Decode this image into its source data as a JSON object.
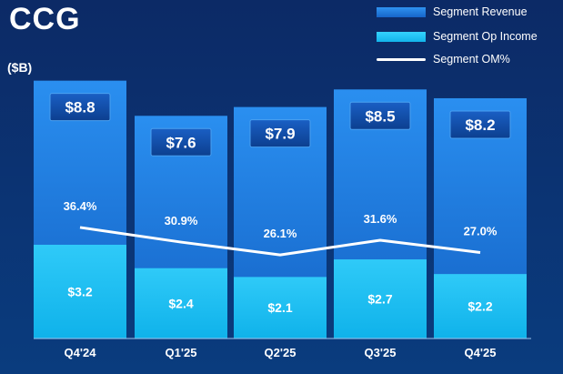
{
  "page": {
    "title": "CCG",
    "unit": "($B)"
  },
  "legend": [
    {
      "label": "Segment Revenue",
      "kind": "bar",
      "color": "#1a7ee0"
    },
    {
      "label": "Segment Op Income",
      "kind": "bar",
      "color": "#19c3f5"
    },
    {
      "label": "Segment OM%",
      "kind": "line",
      "color": "#ffffff"
    }
  ],
  "chart_data": {
    "type": "bar",
    "title": "CCG",
    "ylabel": "($B)",
    "categories": [
      "Q4'24",
      "Q1'25",
      "Q2'25",
      "Q3'25",
      "Q4'25"
    ],
    "series": [
      {
        "name": "Segment Revenue",
        "values": [
          8.8,
          7.6,
          7.9,
          8.5,
          8.2
        ],
        "labels": [
          "$8.8",
          "$7.6",
          "$7.9",
          "$8.5",
          "$8.2"
        ],
        "color": "#1a7ee0"
      },
      {
        "name": "Segment Op Income",
        "values": [
          3.2,
          2.4,
          2.1,
          2.7,
          2.2
        ],
        "labels": [
          "$3.2",
          "$2.4",
          "$2.1",
          "$2.7",
          "$2.2"
        ],
        "color": "#19c3f5"
      },
      {
        "name": "Segment OM%",
        "type": "line",
        "values": [
          36.4,
          30.9,
          26.1,
          31.6,
          27.0
        ],
        "labels": [
          "36.4%",
          "30.9%",
          "26.1%",
          "31.6%",
          "27.0%"
        ],
        "color": "#ffffff"
      }
    ],
    "grid": false,
    "legend_position": "top-right"
  }
}
